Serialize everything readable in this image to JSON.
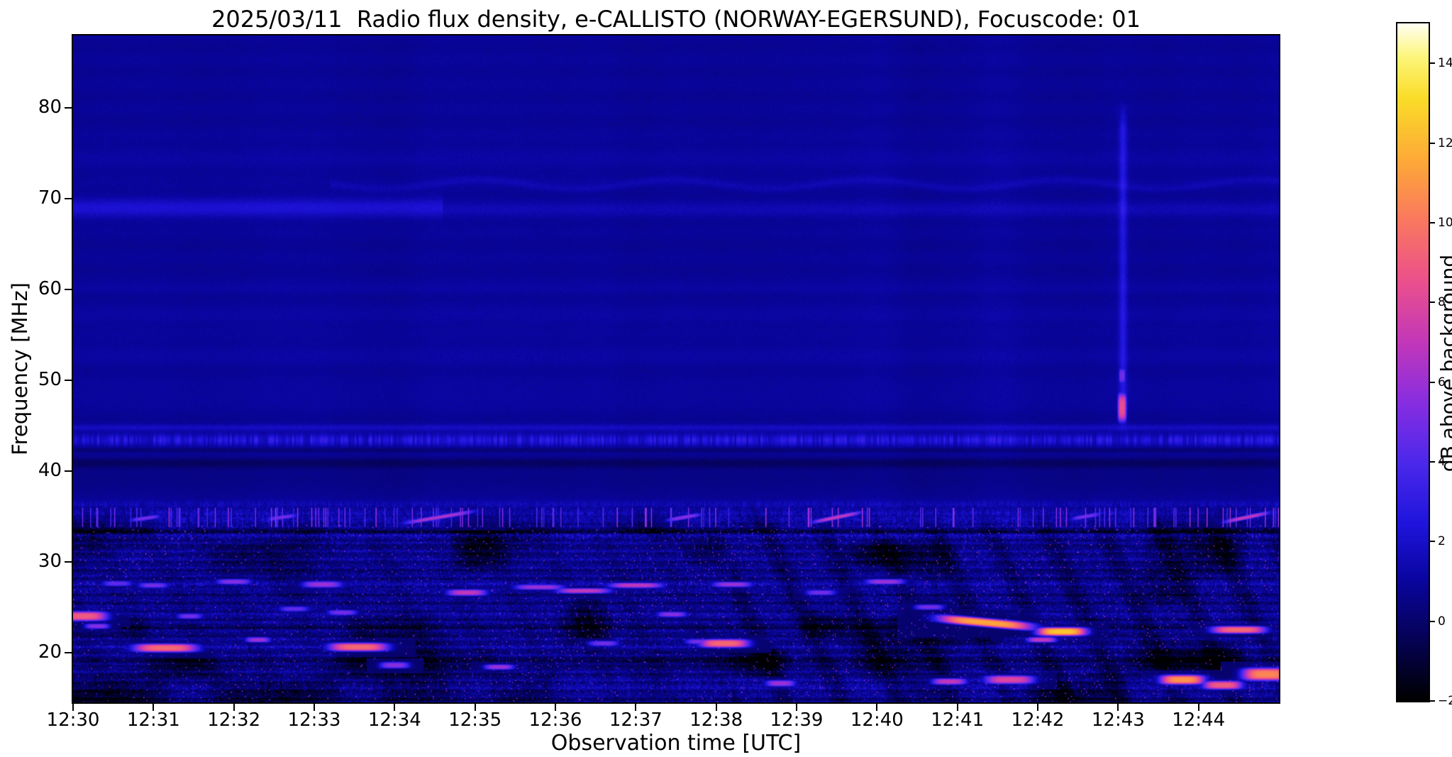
{
  "chart_data": {
    "type": "heatmap",
    "title": "2025/03/11  Radio flux density, e-CALLISTO (NORWAY-EGERSUND), Focuscode: 01",
    "date": "2025/03/11",
    "station": "NORWAY-EGERSUND",
    "focuscode": "01",
    "xlabel": "Observation time [UTC]",
    "ylabel": "Frequency [MHz]",
    "x_ticks": [
      "12:30",
      "12:31",
      "12:32",
      "12:33",
      "12:34",
      "12:35",
      "12:36",
      "12:37",
      "12:38",
      "12:39",
      "12:40",
      "12:41",
      "12:42",
      "12:43",
      "12:44"
    ],
    "x_range_minutes": [
      0,
      15
    ],
    "y_ticks": [
      20,
      30,
      40,
      50,
      60,
      70,
      80
    ],
    "freq_range_mhz": [
      14.5,
      88
    ],
    "colorbar": {
      "label": "dB above background",
      "range": [
        -2,
        15
      ],
      "ticks": [
        {
          "v": -2,
          "label": "−2"
        },
        {
          "v": 0,
          "label": "0"
        },
        {
          "v": 2,
          "label": "2"
        },
        {
          "v": 4,
          "label": "4"
        },
        {
          "v": 6,
          "label": "6"
        },
        {
          "v": 8,
          "label": "8"
        },
        {
          "v": 10,
          "label": "10"
        },
        {
          "v": 12,
          "label": "12"
        },
        {
          "v": 14,
          "label": "14"
        }
      ],
      "colormap": "gnuplot2",
      "stops": [
        [
          0.0,
          [
            0,
            0,
            0
          ]
        ],
        [
          0.09,
          [
            5,
            2,
            85
          ]
        ],
        [
          0.18,
          [
            10,
            5,
            160
          ]
        ],
        [
          0.26,
          [
            30,
            20,
            220
          ]
        ],
        [
          0.35,
          [
            75,
            40,
            235
          ]
        ],
        [
          0.44,
          [
            135,
            45,
            225
          ]
        ],
        [
          0.53,
          [
            195,
            55,
            185
          ]
        ],
        [
          0.62,
          [
            235,
            80,
            140
          ]
        ],
        [
          0.71,
          [
            250,
            120,
            95
          ]
        ],
        [
          0.8,
          [
            253,
            170,
            55
          ]
        ],
        [
          0.89,
          [
            250,
            220,
            40
          ]
        ],
        [
          0.95,
          [
            252,
            245,
            120
          ]
        ],
        [
          1.0,
          [
            255,
            255,
            240
          ]
        ]
      ]
    },
    "background": {
      "base_upper_db": 0.85,
      "base_lower_db": 0.55,
      "noise_upper_db": 0.3,
      "noise_lower_db": 1.65,
      "lower_region_top_mhz": 36.5,
      "lower_region_full_mhz": 32.5,
      "diag_stripe_depth_db": 0.95,
      "patch_depth_db": 5.5
    },
    "bands": [
      {
        "f": 69.0,
        "sigma": 1.1,
        "amp": 1.3,
        "t0": 0,
        "t1": 4.6
      },
      {
        "f": 68.8,
        "sigma": 0.9,
        "amp": 0.55,
        "t0": 4.6,
        "t1": 15
      },
      {
        "f": 71.6,
        "sigma": 0.45,
        "amp": 0.5,
        "t0": 3.2,
        "t1": 15,
        "wavy": 1
      },
      {
        "f": 74.5,
        "sigma": 2.0,
        "amp": 0.2
      },
      {
        "f": 60.0,
        "sigma": 0.6,
        "amp": 0.25
      },
      {
        "f": 57.0,
        "sigma": 0.8,
        "amp": 0.3
      },
      {
        "f": 53.0,
        "sigma": 1.8,
        "amp": 0.2
      },
      {
        "f": 48.5,
        "sigma": 1.0,
        "amp": 0.25
      },
      {
        "f": 44.8,
        "sigma": 0.35,
        "amp": 0.9
      },
      {
        "f": 43.4,
        "sigma": 0.6,
        "amp": 1.6,
        "flicker": 1
      },
      {
        "f": 42.3,
        "sigma": 0.25,
        "amp": -0.8
      },
      {
        "f": 40.9,
        "sigma": 0.6,
        "amp": -1.1
      },
      {
        "f": 39.0,
        "sigma": 1.0,
        "amp": -0.4
      },
      {
        "f": 36.3,
        "sigma": 0.4,
        "amp": 0.6,
        "flicker": 1
      },
      {
        "f": 35.3,
        "sigma": 0.35,
        "amp": 0.9,
        "flicker": 1
      },
      {
        "f": 34.5,
        "sigma": 0.4,
        "amp": 0.8,
        "flicker": 1
      },
      {
        "f": 33.3,
        "sigma": 0.25,
        "amp": -1.2
      },
      {
        "f": 32.8,
        "sigma": 0.3,
        "amp": 0.9,
        "flicker": 1
      },
      {
        "f": 30.5,
        "sigma": 0.8,
        "amp": 0.3
      },
      {
        "f": 27.4,
        "sigma": 0.45,
        "amp": 0.7,
        "flicker": 1
      },
      {
        "f": 24.3,
        "sigma": 0.5,
        "amp": 0.4,
        "flicker": 1
      },
      {
        "f": 22.8,
        "sigma": 0.3,
        "amp": -0.6
      },
      {
        "f": 20.7,
        "sigma": 0.4,
        "amp": 0.5,
        "flicker": 1
      },
      {
        "f": 19.0,
        "sigma": 0.35,
        "amp": -0.8
      },
      {
        "f": 16.3,
        "sigma": 0.9,
        "amp": 0.6,
        "flicker": 1
      }
    ],
    "vertical_streak": {
      "t": 13.06,
      "sigma_min": 0.05,
      "f0": 44,
      "f1": 81,
      "amp": 1.7
    },
    "bursts": [
      {
        "t": 0.12,
        "f": 24.0,
        "dt": 0.5,
        "df": 0.9,
        "v": 9
      },
      {
        "t": 0.3,
        "f": 22.9,
        "dt": 0.25,
        "df": 0.5,
        "v": 5.5
      },
      {
        "t": 0.55,
        "f": 27.6,
        "dt": 0.3,
        "df": 0.5,
        "v": 4.5
      },
      {
        "t": 0.9,
        "f": 34.8,
        "dt": 0.3,
        "df": 0.4,
        "v": 5,
        "slope": 1.2
      },
      {
        "t": 1.15,
        "f": 20.5,
        "dt": 0.65,
        "df": 0.8,
        "v": 9.5
      },
      {
        "t": 1.0,
        "f": 27.4,
        "dt": 0.3,
        "df": 0.5,
        "v": 5
      },
      {
        "t": 1.45,
        "f": 24.0,
        "dt": 0.25,
        "df": 0.5,
        "v": 5
      },
      {
        "t": 2.0,
        "f": 27.8,
        "dt": 0.35,
        "df": 0.5,
        "v": 5.5
      },
      {
        "t": 2.3,
        "f": 21.4,
        "dt": 0.25,
        "df": 0.5,
        "v": 6
      },
      {
        "t": 2.6,
        "f": 34.9,
        "dt": 0.3,
        "df": 0.4,
        "v": 5,
        "slope": 1.2
      },
      {
        "t": 2.75,
        "f": 24.8,
        "dt": 0.3,
        "df": 0.5,
        "v": 4.5
      },
      {
        "t": 3.1,
        "f": 27.5,
        "dt": 0.4,
        "df": 0.6,
        "v": 6
      },
      {
        "t": 3.55,
        "f": 20.6,
        "dt": 0.6,
        "df": 0.8,
        "v": 9.5
      },
      {
        "t": 3.35,
        "f": 24.4,
        "dt": 0.3,
        "df": 0.5,
        "v": 5
      },
      {
        "t": 4.0,
        "f": 18.6,
        "dt": 0.3,
        "df": 0.6,
        "v": 5.5
      },
      {
        "t": 4.55,
        "f": 34.9,
        "dt": 0.7,
        "df": 0.4,
        "v": 6.5,
        "slope": 1.5
      },
      {
        "t": 4.9,
        "f": 26.6,
        "dt": 0.4,
        "df": 0.6,
        "v": 7
      },
      {
        "t": 5.3,
        "f": 18.4,
        "dt": 0.3,
        "df": 0.5,
        "v": 6
      },
      {
        "t": 5.8,
        "f": 27.2,
        "dt": 0.5,
        "df": 0.5,
        "v": 6
      },
      {
        "t": 6.35,
        "f": 26.8,
        "dt": 0.55,
        "df": 0.5,
        "v": 7
      },
      {
        "t": 6.6,
        "f": 21.0,
        "dt": 0.3,
        "df": 0.5,
        "v": 5
      },
      {
        "t": 7.0,
        "f": 27.4,
        "dt": 0.55,
        "df": 0.5,
        "v": 7
      },
      {
        "t": 7.45,
        "f": 24.2,
        "dt": 0.3,
        "df": 0.5,
        "v": 5.5
      },
      {
        "t": 7.6,
        "f": 34.9,
        "dt": 0.35,
        "df": 0.4,
        "v": 5.5,
        "slope": 1.5
      },
      {
        "t": 7.8,
        "f": 21.2,
        "dt": 0.3,
        "df": 0.5,
        "v": 5
      },
      {
        "t": 8.1,
        "f": 21.0,
        "dt": 0.5,
        "df": 0.8,
        "v": 9.5
      },
      {
        "t": 8.2,
        "f": 27.5,
        "dt": 0.4,
        "df": 0.5,
        "v": 6
      },
      {
        "t": 8.8,
        "f": 16.6,
        "dt": 0.3,
        "df": 0.6,
        "v": 6
      },
      {
        "t": 9.5,
        "f": 34.9,
        "dt": 0.5,
        "df": 0.4,
        "v": 7,
        "slope": 1.8
      },
      {
        "t": 9.3,
        "f": 26.6,
        "dt": 0.3,
        "df": 0.5,
        "v": 5
      },
      {
        "t": 10.1,
        "f": 27.8,
        "dt": 0.4,
        "df": 0.5,
        "v": 6
      },
      {
        "t": 10.65,
        "f": 25.0,
        "dt": 0.3,
        "df": 0.5,
        "v": 5
      },
      {
        "t": 10.9,
        "f": 16.8,
        "dt": 0.35,
        "df": 0.6,
        "v": 7
      },
      {
        "t": 11.35,
        "f": 23.3,
        "dt": 0.95,
        "df": 0.8,
        "v": 11.5,
        "slope": -0.8
      },
      {
        "t": 11.65,
        "f": 17.0,
        "dt": 0.5,
        "df": 0.8,
        "v": 8
      },
      {
        "t": 12.3,
        "f": 22.3,
        "dt": 0.5,
        "df": 0.8,
        "v": 12.5
      },
      {
        "t": 12.05,
        "f": 21.4,
        "dt": 0.3,
        "df": 0.5,
        "v": 7
      },
      {
        "t": 12.6,
        "f": 35.0,
        "dt": 0.3,
        "df": 0.4,
        "v": 5,
        "slope": 1.5
      },
      {
        "t": 13.05,
        "f": 47.0,
        "dt": 0.09,
        "df": 2.8,
        "v": 8.5
      },
      {
        "t": 13.05,
        "f": 50.5,
        "dt": 0.07,
        "df": 1.5,
        "v": 5
      },
      {
        "t": 13.8,
        "f": 17.0,
        "dt": 0.45,
        "df": 0.9,
        "v": 11
      },
      {
        "t": 14.3,
        "f": 16.4,
        "dt": 0.4,
        "df": 0.8,
        "v": 9
      },
      {
        "t": 14.5,
        "f": 22.5,
        "dt": 0.55,
        "df": 0.7,
        "v": 9.5
      },
      {
        "t": 14.6,
        "f": 34.9,
        "dt": 0.45,
        "df": 0.4,
        "v": 7,
        "slope": 1.8
      },
      {
        "t": 14.85,
        "f": 17.6,
        "dt": 0.5,
        "df": 1.2,
        "v": 10.5
      }
    ]
  }
}
